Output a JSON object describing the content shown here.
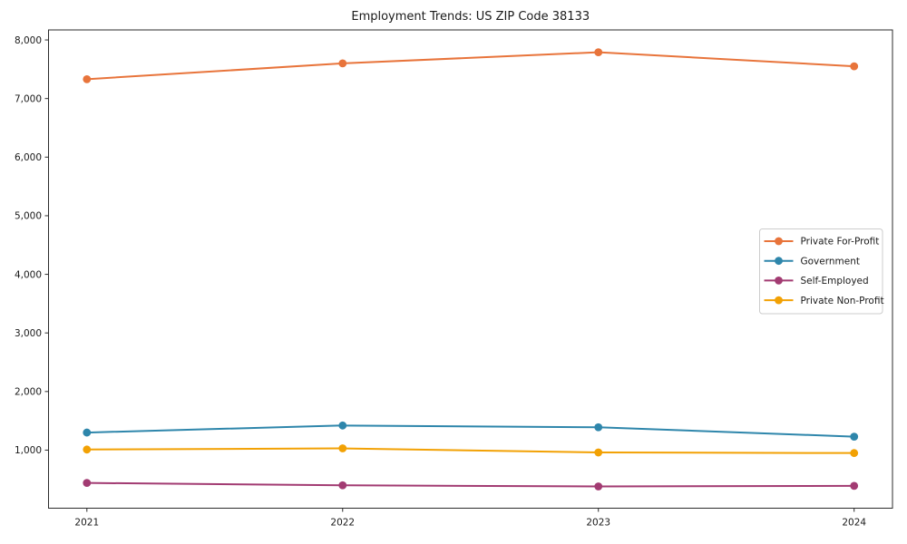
{
  "chart_data": {
    "type": "line",
    "title": "Employment Trends: US ZIP Code 38133",
    "xlabel": "",
    "ylabel": "",
    "x": [
      2021,
      2022,
      2023,
      2024
    ],
    "x_tick_labels": [
      "2021",
      "2022",
      "2023",
      "2024"
    ],
    "y_ticks": [
      1000,
      2000,
      3000,
      4000,
      5000,
      6000,
      7000,
      8000
    ],
    "y_tick_labels": [
      "1,000",
      "2,000",
      "3,000",
      "4,000",
      "5,000",
      "6,000",
      "7,000",
      "8,000"
    ],
    "xlim": [
      2020.85,
      2024.15
    ],
    "ylim": [
      9,
      8171
    ],
    "grid": false,
    "legend_position": "center-right",
    "series": [
      {
        "name": "Private For-Profit",
        "color": "#E8743B",
        "values": [
          7330,
          7600,
          7790,
          7550
        ]
      },
      {
        "name": "Government",
        "color": "#2E86AB",
        "values": [
          1300,
          1420,
          1390,
          1230
        ]
      },
      {
        "name": "Self-Employed",
        "color": "#A23B72",
        "values": [
          440,
          400,
          380,
          390
        ]
      },
      {
        "name": "Private Non-Profit",
        "color": "#F2A104",
        "values": [
          1010,
          1030,
          960,
          950
        ]
      }
    ]
  },
  "colors": {
    "background": "#FFFFFF",
    "spine": "#2B2B2B",
    "tick": "#2B2B2B",
    "text": "#1A1A1A",
    "legend_border": "#CCCCCC",
    "legend_background": "#FFFFFF"
  }
}
